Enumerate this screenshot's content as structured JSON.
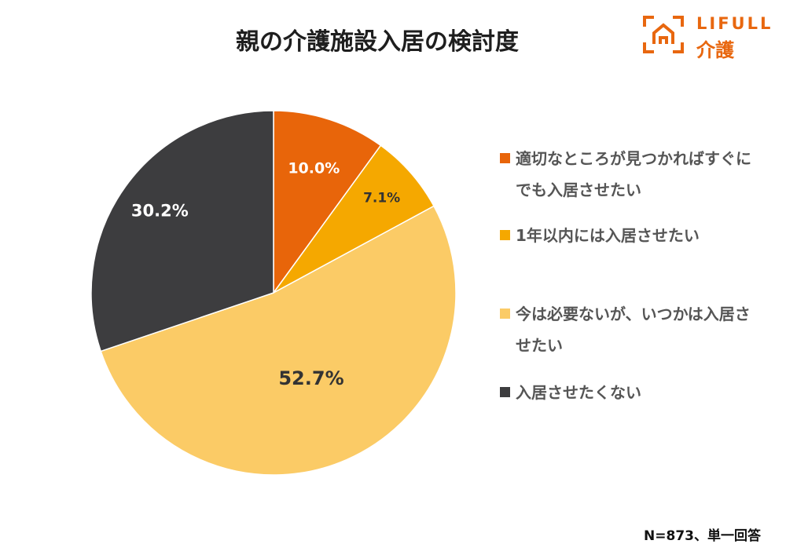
{
  "logo": {
    "brand": "LIFULL",
    "service": "介護",
    "color": "#e8670f"
  },
  "note": "N=873、単一回答",
  "chart_data": {
    "type": "pie",
    "title": "親の介護施設入居の検討度",
    "start": "12 o'clock, clockwise",
    "slices": [
      {
        "label": "適切なところが見つかればすぐにでも入居させたい",
        "value": 10.0,
        "display": "10.0%",
        "color": "#e8650a",
        "label_color": "#ffffff"
      },
      {
        "label": "1年以内には入居させたい",
        "value": 7.1,
        "display": "7.1%",
        "color": "#f5a800",
        "label_color": "#333333"
      },
      {
        "label": "今は必要ないが、いつかは入居させたい",
        "value": 52.7,
        "display": "52.7%",
        "color": "#fbcb66",
        "label_color": "#333333"
      },
      {
        "label": "入居させたくない",
        "value": 30.2,
        "display": "30.2%",
        "color": "#3d3d3f",
        "label_color": "#ffffff"
      }
    ],
    "legend_position": "right"
  }
}
